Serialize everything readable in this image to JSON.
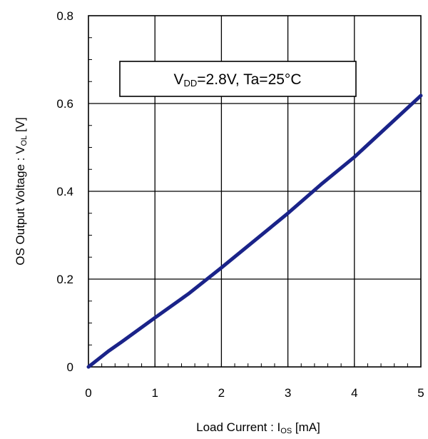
{
  "chart_data": {
    "type": "line",
    "xlabel": {
      "prefix": "Load Current : I",
      "subscript": "OS",
      "suffix": " [mA]"
    },
    "ylabel": {
      "prefix": "OS Output Voltage : V",
      "subscript": "OL",
      "suffix": " [V]"
    },
    "xlim": [
      0,
      5
    ],
    "ylim": [
      0,
      0.8
    ],
    "x_ticks": [
      {
        "value": 0,
        "label": "0"
      },
      {
        "value": 1,
        "label": "1"
      },
      {
        "value": 2,
        "label": "2"
      },
      {
        "value": 3,
        "label": "3"
      },
      {
        "value": 4,
        "label": "4"
      },
      {
        "value": 5,
        "label": "5"
      }
    ],
    "y_ticks": [
      {
        "value": 0,
        "label": "0"
      },
      {
        "value": 0.2,
        "label": "0.2"
      },
      {
        "value": 0.4,
        "label": "0.4"
      },
      {
        "value": 0.6,
        "label": "0.6"
      },
      {
        "value": 0.8,
        "label": "0.8"
      }
    ],
    "grid": true,
    "annotation": {
      "parts": [
        {
          "text": "V",
          "sub": false
        },
        {
          "text": "DD",
          "sub": true
        },
        {
          "text": "=2.8V, Ta=25°C",
          "sub": false
        }
      ]
    },
    "series": [
      {
        "color": "#1a2389",
        "x": [
          0,
          0.3,
          0.5,
          1.0,
          1.5,
          2.0,
          2.5,
          3.0,
          3.5,
          4.0,
          4.5,
          5.0
        ],
        "y": [
          0.0,
          0.036,
          0.057,
          0.112,
          0.166,
          0.226,
          0.288,
          0.35,
          0.416,
          0.478,
          0.548,
          0.618
        ]
      }
    ]
  }
}
